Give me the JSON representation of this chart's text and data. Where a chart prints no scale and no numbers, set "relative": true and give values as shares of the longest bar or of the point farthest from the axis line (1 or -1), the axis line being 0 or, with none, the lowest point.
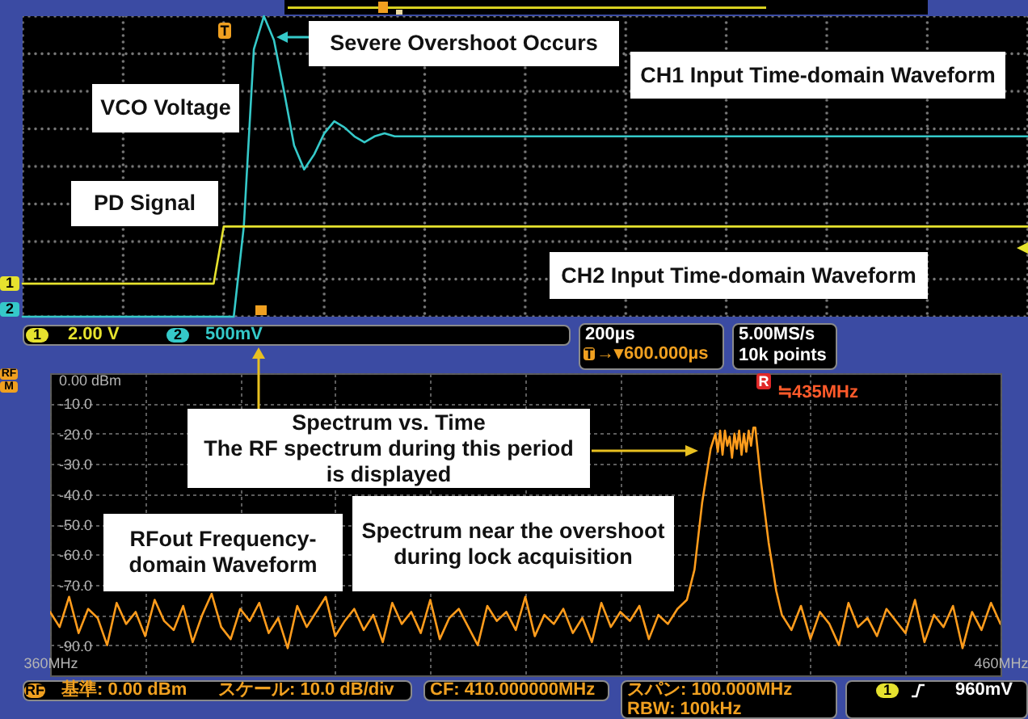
{
  "chart_data": [
    {
      "type": "line",
      "categories": [
        null,
        null,
        null,
        null,
        null,
        null,
        null,
        null,
        null,
        null,
        null,
        null,
        null,
        null,
        null,
        null,
        null,
        null,
        null,
        null,
        null,
        null,
        null,
        null,
        null,
        null,
        null,
        null,
        null,
        null,
        null,
        null,
        null,
        null,
        null,
        null,
        null,
        null,
        null,
        null,
        null,
        null,
        null,
        null,
        null,
        null,
        null,
        null,
        null,
        null,
        null,
        null,
        null,
        null,
        null,
        null,
        null,
        null,
        null,
        null,
        null,
        null,
        null,
        null,
        null,
        null,
        null,
        null,
        null,
        null,
        null,
        null,
        null,
        null,
        null,
        null,
        null,
        null,
        null,
        null,
        null,
        null,
        null,
        null,
        null,
        null,
        null,
        null,
        null,
        null,
        null,
        null,
        null,
        null,
        null,
        null,
        null,
        null,
        null,
        null,
        null
      ],
      "relative": true,
      "grid": true,
      "series": [
        {
          "name": "VCO Voltage",
          "color": "#35c9c9",
          "values": [
            0,
            0,
            0,
            0,
            0,
            0,
            0,
            0,
            0,
            0,
            0,
            0,
            0,
            0,
            0,
            0,
            0,
            0,
            0,
            0,
            0,
            0,
            0.3,
            0.89,
            1,
            0.92,
            0.75,
            0.57,
            0.49,
            0.54,
            0.61,
            0.65,
            0.63,
            0.6,
            0.58,
            0.6,
            0.61,
            0.6,
            0.6,
            0.6,
            0.6,
            0.6,
            0.6,
            0.6,
            0.6,
            0.6,
            0.6,
            0.6,
            0.6,
            0.6,
            0.6,
            0.6,
            0.6,
            0.6,
            0.6,
            0.6,
            0.6,
            0.6,
            0.6,
            0.6,
            0.6,
            0.6,
            0.6,
            0.6,
            0.6,
            0.6,
            0.6,
            0.6,
            0.6,
            0.6,
            0.6,
            0.6,
            0.6,
            0.6,
            0.6,
            0.6,
            0.6,
            0.6,
            0.6,
            0.6,
            0.6,
            0.6,
            0.6,
            0.6,
            0.6,
            0.6,
            0.6,
            0.6,
            0.6,
            0.6,
            0.6,
            0.6,
            0.6,
            0.6,
            0.6,
            0.6,
            0.6,
            0.6,
            0.6,
            0.6,
            0.6
          ]
        },
        {
          "name": "PD Signal",
          "color": "#e6e22e",
          "values": [
            0.11,
            0.11,
            0.11,
            0.11,
            0.11,
            0.11,
            0.11,
            0.11,
            0.11,
            0.11,
            0.11,
            0.11,
            0.11,
            0.11,
            0.11,
            0.11,
            0.11,
            0.11,
            0.11,
            0.11,
            0.3,
            0.3,
            0.3,
            0.3,
            0.3,
            0.3,
            0.3,
            0.3,
            0.3,
            0.3,
            0.3,
            0.3,
            0.3,
            0.3,
            0.3,
            0.3,
            0.3,
            0.3,
            0.3,
            0.3,
            0.3,
            0.3,
            0.3,
            0.3,
            0.3,
            0.3,
            0.3,
            0.3,
            0.3,
            0.3,
            0.3,
            0.3,
            0.3,
            0.3,
            0.3,
            0.3,
            0.3,
            0.3,
            0.3,
            0.3,
            0.3,
            0.3,
            0.3,
            0.3,
            0.3,
            0.3,
            0.3,
            0.3,
            0.3,
            0.3,
            0.3,
            0.3,
            0.3,
            0.3,
            0.3,
            0.3,
            0.3,
            0.3,
            0.3,
            0.3,
            0.3,
            0.3,
            0.3,
            0.3,
            0.3,
            0.3,
            0.3,
            0.3,
            0.3,
            0.3,
            0.3,
            0.3,
            0.3,
            0.3,
            0.3,
            0.3,
            0.3,
            0.3,
            0.3,
            0.3,
            0.3
          ]
        }
      ],
      "annotations": [
        "Severe Overshoot Occurs",
        "CH1 Input Time-domain Waveform",
        "CH2 Input Time-domain Waveform",
        "T",
        "1",
        "2",
        "1",
        "2.00 V",
        "2",
        "500mV",
        "200µs",
        "T",
        "→▾600.000µs",
        "5.00MS/s",
        "10k points"
      ]
    },
    {
      "type": "line",
      "x": [
        360,
        361,
        362,
        363,
        364,
        365,
        366,
        367,
        368,
        369,
        370,
        371,
        372,
        373,
        374,
        375,
        376,
        377,
        378,
        379,
        380,
        381,
        382,
        383,
        384,
        385,
        386,
        387,
        388,
        389,
        390,
        391,
        392,
        393,
        394,
        395,
        396,
        397,
        398,
        399,
        400,
        401,
        402,
        403,
        404,
        405,
        406,
        407,
        408,
        409,
        410,
        411,
        412,
        413,
        414,
        415,
        416,
        417,
        418,
        419,
        420,
        421,
        422,
        423,
        424,
        425,
        426,
        427,
        427.8,
        428.6,
        429.5,
        430,
        430.25,
        430.5,
        430.75,
        431,
        431.25,
        431.5,
        431.75,
        432,
        432.25,
        432.5,
        432.75,
        433,
        433.25,
        433.5,
        433.75,
        434,
        434.2,
        434.8,
        435.6,
        436.4,
        437,
        438,
        439,
        440,
        441,
        442,
        443,
        444,
        445,
        446,
        447,
        448,
        449,
        450,
        451,
        452,
        453,
        454,
        455,
        456,
        457,
        458,
        459,
        460
      ],
      "series": [
        {
          "color": "#ff9c1c",
          "values": [
            -79,
            -84,
            -74,
            -86,
            -78,
            -81,
            -90,
            -76,
            -83,
            -79,
            -87,
            -75,
            -82,
            -85,
            -77,
            -89,
            -80,
            -73,
            -84,
            -88,
            -78,
            -82,
            -76,
            -86,
            -81,
            -91,
            -77,
            -84,
            -79,
            -74,
            -87,
            -82,
            -78,
            -85,
            -80,
            -89,
            -76,
            -83,
            -79,
            -86,
            -75,
            -88,
            -81,
            -78,
            -84,
            -90,
            -77,
            -82,
            -79,
            -85,
            -74,
            -87,
            -80,
            -83,
            -78,
            -86,
            -81,
            -89,
            -76,
            -84,
            -79,
            -82,
            -77,
            -88,
            -80,
            -83,
            -78,
            -75,
            -65,
            -43,
            -25,
            -20,
            -26,
            -19,
            -27,
            -19,
            -24,
            -21,
            -28,
            -20,
            -25,
            -19,
            -27,
            -20,
            -26,
            -19,
            -24,
            -18,
            -18,
            -36,
            -56,
            -72,
            -80,
            -85,
            -77,
            -88,
            -79,
            -83,
            -90,
            -76,
            -84,
            -81,
            -87,
            -78,
            -82,
            -86,
            -75,
            -89,
            -80,
            -84,
            -77,
            -91,
            -79,
            -85,
            -76,
            -83
          ]
        }
      ],
      "xlim": [
        360,
        460
      ],
      "xticks": [
        {
          "value": 360,
          "label": "360MHz"
        },
        {
          "value": 370,
          "label": null
        },
        {
          "value": 380,
          "label": null
        },
        {
          "value": 390,
          "label": null
        },
        {
          "value": 400,
          "label": null
        },
        {
          "value": 410,
          "label": null
        },
        {
          "value": 420,
          "label": null
        },
        {
          "value": 430,
          "label": null
        },
        {
          "value": 440,
          "label": null
        },
        {
          "value": 450,
          "label": null
        },
        {
          "value": 460,
          "label": "460MHz"
        }
      ],
      "ylim": [
        -100,
        0
      ],
      "yticks": [
        {
          "value": 0,
          "label": "0.00 dBm"
        },
        {
          "value": -10,
          "label": "-10.0"
        },
        {
          "value": -20,
          "label": "-20.0"
        },
        {
          "value": -30,
          "label": "-30.0"
        },
        {
          "value": -40,
          "label": "-40.0"
        },
        {
          "value": -50,
          "label": "-50.0"
        },
        {
          "value": -60,
          "label": "-60.0"
        },
        {
          "value": -70,
          "label": "-70.0"
        },
        {
          "value": -80,
          "label": null
        },
        {
          "value": -90,
          "label": "-90.0"
        }
      ],
      "grid": true,
      "annotations": [
        "Spectrum vs. Time\nThe RF spectrum during this period\nis displayed",
        "RFout Frequency-\ndomain Waveform",
        "Spectrum near the overshoot\nduring lock acquisition",
        "R",
        "≒435MHz",
        "RF",
        "M",
        "RF",
        "基準: 0.00 dBm",
        "スケール: 10.0 dB/div",
        "CF: 410.000000MHz",
        "スパン: 100.000MHz",
        "RBW: 100kHz",
        "1",
        "960mV"
      ]
    }
  ]
}
